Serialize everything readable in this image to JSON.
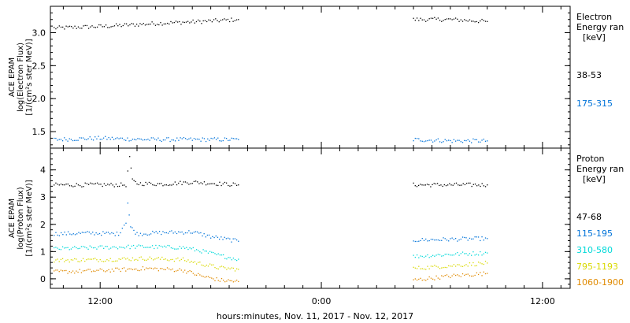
{
  "chart_data": [
    {
      "type": "scatter",
      "ylabel": [
        "ACE EPAM",
        "log(Electron Flux)",
        "[1/(cm²s ster MeV)]"
      ],
      "ylim": [
        1.25,
        3.4
      ],
      "yticks": [
        1.5,
        2.0,
        2.5,
        3.0
      ],
      "yticklabels": [
        "1.5",
        "2.0",
        "2.5",
        "3.0"
      ],
      "legend_title": [
        "Electron",
        "Energy ran",
        "[keV]"
      ],
      "series": [
        {
          "name": "38-53",
          "color": "#000000",
          "segments": [
            [
              [
                9.5,
                3.07
              ],
              [
                12.5,
                3.1
              ],
              [
                15.0,
                3.14
              ],
              [
                17.5,
                3.17
              ],
              [
                19.5,
                3.2
              ]
            ],
            [
              [
                29.0,
                3.2
              ],
              [
                31.0,
                3.2
              ],
              [
                33.0,
                3.17
              ]
            ]
          ]
        },
        {
          "name": "175-315",
          "color": "#0073d9",
          "segments": [
            [
              [
                9.5,
                1.38
              ],
              [
                12.0,
                1.4
              ],
              [
                14.5,
                1.38
              ],
              [
                17.0,
                1.38
              ],
              [
                19.5,
                1.38
              ]
            ],
            [
              [
                29.0,
                1.38
              ],
              [
                31.0,
                1.36
              ],
              [
                33.0,
                1.36
              ]
            ]
          ]
        }
      ]
    },
    {
      "type": "scatter",
      "ylabel": [
        "ACE EPAM",
        "log(Proton Flux)",
        "[1/(cm²s ster MeV)]"
      ],
      "ylim": [
        -0.35,
        4.8
      ],
      "yticks": [
        0,
        1,
        2,
        3,
        4
      ],
      "yticklabels": [
        "0",
        "1",
        "2",
        "3",
        "4"
      ],
      "xlabel": "hours:minutes, Nov. 11, 2017 - Nov. 12, 2017",
      "xlim": [
        9.3,
        37.5
      ],
      "xticks": [
        12,
        24,
        36
      ],
      "xticklabels": [
        "12:00",
        "0:00",
        "12:00"
      ],
      "legend_title": [
        "Proton",
        "Energy ran",
        "[keV]"
      ],
      "series": [
        {
          "name": "47-68",
          "color": "#000000",
          "segments": [
            [
              [
                9.5,
                3.45
              ],
              [
                12.5,
                3.45
              ],
              [
                13.4,
                3.45
              ],
              [
                13.5,
                3.9
              ],
              [
                13.6,
                4.5
              ],
              [
                13.75,
                3.6
              ],
              [
                14.0,
                3.5
              ],
              [
                15.5,
                3.48
              ],
              [
                17.0,
                3.55
              ],
              [
                19.5,
                3.45
              ]
            ],
            [
              [
                29.0,
                3.45
              ],
              [
                33.0,
                3.45
              ]
            ]
          ]
        },
        {
          "name": "115-195",
          "color": "#0073d9",
          "segments": [
            [
              [
                9.5,
                1.65
              ],
              [
                11.5,
                1.68
              ],
              [
                13.0,
                1.65
              ],
              [
                13.4,
                2.1
              ],
              [
                13.5,
                2.8
              ],
              [
                13.65,
                1.9
              ],
              [
                14.0,
                1.65
              ],
              [
                15.5,
                1.7
              ],
              [
                17.0,
                1.72
              ],
              [
                18.0,
                1.55
              ],
              [
                19.5,
                1.38
              ]
            ],
            [
              [
                29.0,
                1.42
              ],
              [
                31.0,
                1.45
              ],
              [
                33.0,
                1.48
              ]
            ]
          ]
        },
        {
          "name": "310-580",
          "color": "#00d9d9",
          "segments": [
            [
              [
                9.5,
                1.1
              ],
              [
                12.0,
                1.15
              ],
              [
                14.0,
                1.18
              ],
              [
                16.5,
                1.15
              ],
              [
                17.5,
                1.02
              ],
              [
                18.5,
                0.85
              ],
              [
                19.5,
                0.72
              ]
            ],
            [
              [
                29.0,
                0.82
              ],
              [
                31.0,
                0.9
              ],
              [
                33.0,
                0.95
              ]
            ]
          ]
        },
        {
          "name": "795-1193",
          "color": "#d9d900",
          "segments": [
            [
              [
                9.5,
                0.68
              ],
              [
                12.0,
                0.7
              ],
              [
                14.5,
                0.75
              ],
              [
                16.5,
                0.7
              ],
              [
                17.5,
                0.55
              ],
              [
                18.5,
                0.4
              ],
              [
                19.5,
                0.35
              ]
            ],
            [
              [
                29.0,
                0.38
              ],
              [
                31.0,
                0.48
              ],
              [
                33.0,
                0.58
              ]
            ]
          ]
        },
        {
          "name": "1060-1900",
          "color": "#e08a00",
          "segments": [
            [
              [
                9.5,
                0.25
              ],
              [
                12.0,
                0.3
              ],
              [
                14.5,
                0.38
              ],
              [
                16.5,
                0.32
              ],
              [
                17.5,
                0.1
              ],
              [
                18.5,
                -0.05
              ],
              [
                19.5,
                -0.1
              ]
            ],
            [
              [
                29.0,
                -0.05
              ],
              [
                31.0,
                0.1
              ],
              [
                33.0,
                0.2
              ]
            ]
          ]
        }
      ]
    }
  ]
}
